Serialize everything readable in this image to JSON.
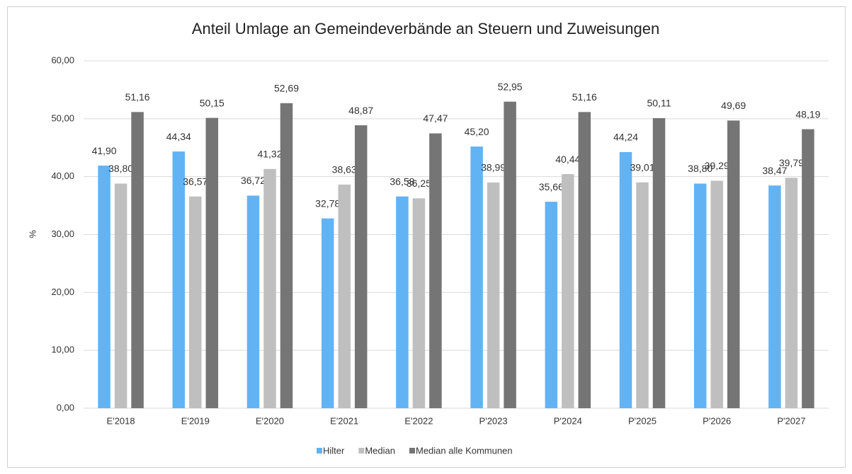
{
  "chart_data": {
    "type": "bar",
    "title": "Anteil Umlage an Gemeindeverbände an Steuern und Zuweisungen",
    "y_label": "%",
    "categories": [
      "E'2018",
      "E'2019",
      "E'2020",
      "E'2021",
      "E'2022",
      "P'2023",
      "P'2024",
      "P'2025",
      "P'2026",
      "P'2027"
    ],
    "series": [
      {
        "name": "Hilter",
        "color": "#62b3f4",
        "values": [
          41.9,
          44.34,
          36.72,
          32.78,
          36.58,
          45.2,
          35.66,
          44.24,
          38.8,
          38.47
        ],
        "value_labels": [
          "41,90",
          "44,34",
          "36,72",
          "32,78",
          "36,58",
          "45,20",
          "35,66",
          "44,24",
          "38,80",
          "38,47"
        ]
      },
      {
        "name": "Median",
        "color": "#bfbfbf",
        "values": [
          38.8,
          36.57,
          41.32,
          38.63,
          36.25,
          38.99,
          40.44,
          39.01,
          39.29,
          39.79
        ],
        "value_labels": [
          "38,80",
          "36,57",
          "41,32",
          "38,63",
          "36,25",
          "38,99",
          "40,44",
          "39,01",
          "39,29",
          "39,79"
        ]
      },
      {
        "name": "Median alle Kommunen",
        "color": "#757575",
        "values": [
          51.16,
          50.15,
          52.69,
          48.87,
          47.47,
          52.95,
          51.16,
          50.11,
          49.69,
          48.19
        ],
        "value_labels": [
          "51,16",
          "50,15",
          "52,69",
          "48,87",
          "47,47",
          "52,95",
          "51,16",
          "50,11",
          "49,69",
          "48,19"
        ]
      }
    ],
    "ylim": [
      0,
      60
    ],
    "yticks": [
      {
        "value": 0,
        "label": "0,00"
      },
      {
        "value": 10,
        "label": "10,00"
      },
      {
        "value": 20,
        "label": "20,00"
      },
      {
        "value": 30,
        "label": "30,00"
      },
      {
        "value": 40,
        "label": "40,00"
      },
      {
        "value": 50,
        "label": "50,00"
      },
      {
        "value": 60,
        "label": "60,00"
      }
    ],
    "grid": true,
    "legend": "bottom"
  }
}
